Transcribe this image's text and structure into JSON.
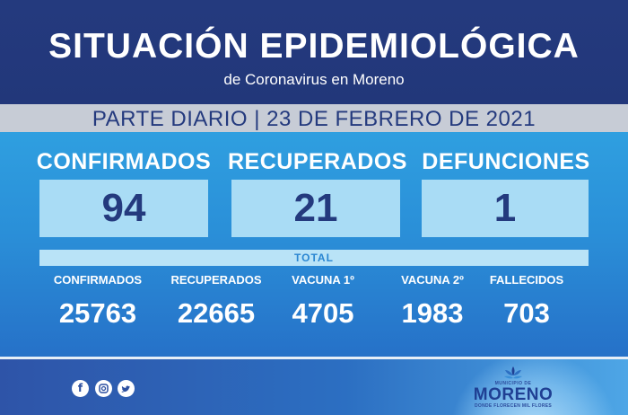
{
  "header": {
    "title": "SITUACIÓN EPIDEMIOLÓGICA",
    "subtitle": "de Coronavirus en Moreno"
  },
  "report": {
    "date_line": "PARTE DIARIO | 23 DE FEBRERO DE 2021"
  },
  "daily": {
    "confirmados": {
      "label": "CONFIRMADOS",
      "value": "94"
    },
    "recuperados": {
      "label": "RECUPERADOS",
      "value": "21"
    },
    "defunciones": {
      "label": "DEFUNCIONES",
      "value": "1"
    }
  },
  "total": {
    "label": "TOTAL",
    "items": [
      {
        "label": "CONFIRMADOS",
        "value": "25763"
      },
      {
        "label": "RECUPERADOS",
        "value": "22665"
      },
      {
        "label": "VACUNA 1º",
        "value": "4705"
      },
      {
        "label": "VACUNA 2º",
        "value": "1983"
      },
      {
        "label": "FALLECIDOS",
        "value": "703"
      }
    ]
  },
  "footer": {
    "social_icons": [
      "facebook-icon",
      "instagram-icon",
      "twitter-icon"
    ],
    "logo": {
      "small_text": "MUNICIPIO DE",
      "name": "MORENO",
      "tagline": "DONDE FLORECEN MIL FLORES"
    }
  },
  "colors": {
    "navy": "#243a7e",
    "sky": "#2f9fe0",
    "box": "#a9dcf5",
    "gray_band": "#c7ccd6"
  }
}
